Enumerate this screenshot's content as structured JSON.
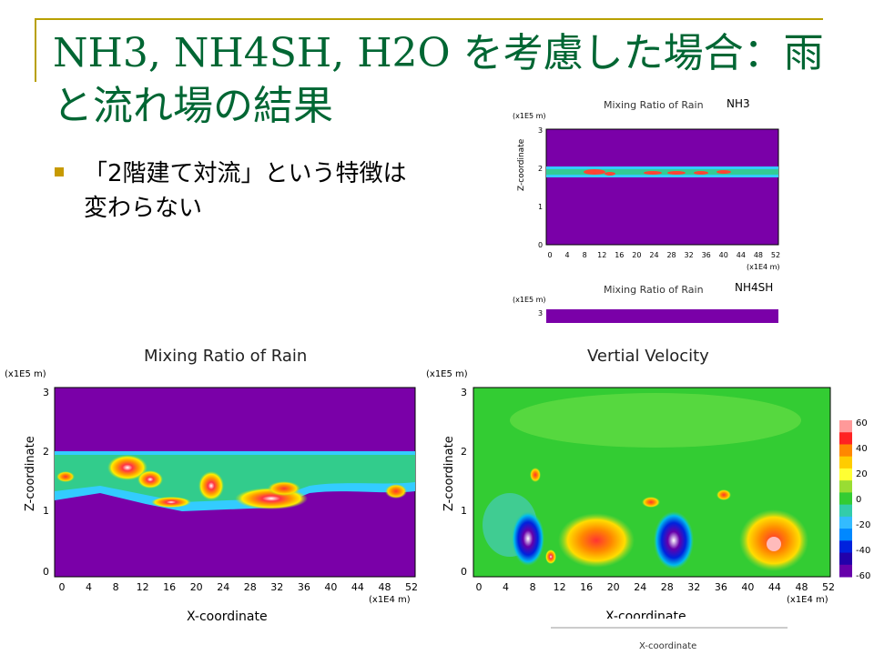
{
  "slide": {
    "title_line1": "NH3, NH4SH, H2O を考慮した場合：雨",
    "title_line2": "と流れ場の結果",
    "bullet_line1": "「2階建て対流」という特徴は",
    "bullet_line2": "変わらない"
  },
  "thumb_nh3": {
    "title": "Mixing Ratio of Rain",
    "label": "NH3",
    "y_unit": "(x1E5 m)",
    "y_label": "Z-coordinate",
    "y_ticks": [
      "0",
      "1",
      "2",
      "3"
    ],
    "x_ticks": [
      "0",
      "4",
      "8",
      "12",
      "16",
      "20",
      "24",
      "28",
      "32",
      "36",
      "40",
      "44",
      "48",
      "52"
    ],
    "x_unit": "(x1E4 m)"
  },
  "thumb_nh4sh": {
    "title": "Mixing Ratio of Rain",
    "label": "NH4SH",
    "y_unit": "(x1E5 m)",
    "y_tick_top": "3"
  },
  "plot_rain": {
    "title": "Mixing Ratio of Rain",
    "y_unit": "(x1E5 m)",
    "y_label": "Z-coordinate",
    "x_label": "X-coordinate",
    "x_unit": "(x1E4 m)",
    "y_ticks": [
      "0",
      "1",
      "2",
      "3"
    ],
    "x_ticks": [
      "0",
      "4",
      "8",
      "12",
      "16",
      "20",
      "24",
      "28",
      "32",
      "36",
      "40",
      "44",
      "48",
      "52"
    ]
  },
  "plot_velocity": {
    "title": "Vertial Velocity",
    "y_unit": "(x1E5 m)",
    "y_label": "Z-coordinate",
    "x_label": "X-coordinate",
    "x_unit": "(x1E4 m)",
    "y_ticks": [
      "0",
      "1",
      "2",
      "3"
    ],
    "x_ticks": [
      "0",
      "4",
      "8",
      "12",
      "16",
      "20",
      "24",
      "28",
      "32",
      "36",
      "40",
      "44",
      "48",
      "52"
    ],
    "colorbar_labels": [
      "60",
      "40",
      "20",
      "0",
      "-20",
      "-40",
      "-60"
    ]
  },
  "behind_axis_label": "X-coordinate",
  "colors": {
    "title": "#006633",
    "rule": "#b8a000",
    "bullet": "#c79a00",
    "background_field": "#7a00a8",
    "velocity_field": "#33cc33"
  }
}
